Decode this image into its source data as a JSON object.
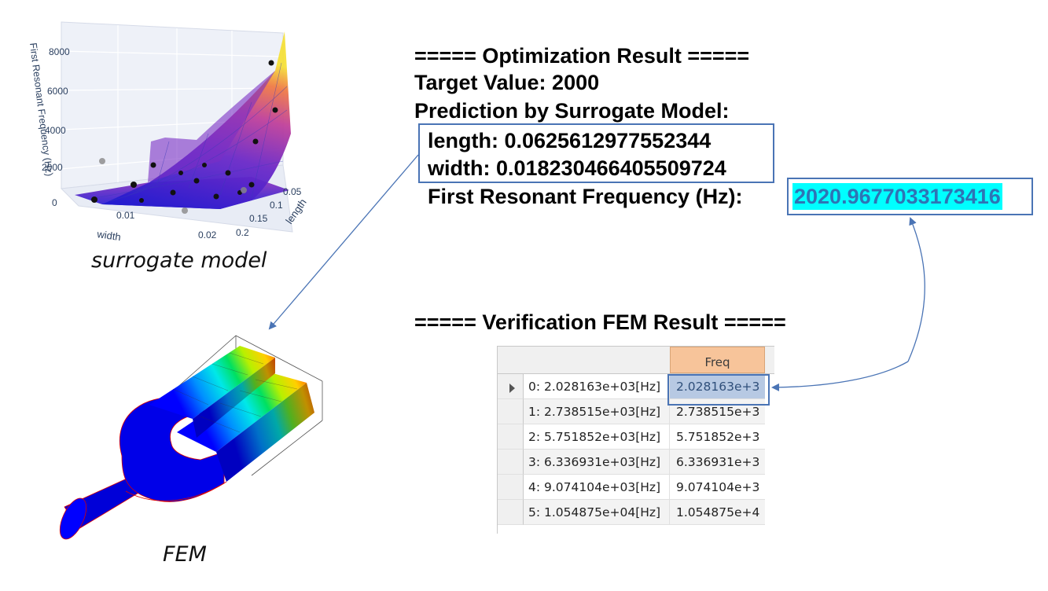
{
  "surrogate": {
    "z_axis_label": "First Resonant Frequency (Hz)",
    "z_ticks": [
      "8000",
      "6000",
      "4000",
      "2000",
      "0"
    ],
    "width_axis_label": "width",
    "width_ticks": [
      "0.01",
      "0.02"
    ],
    "length_axis_label": "length",
    "length_ticks": [
      "0.05",
      "0.1",
      "0.15",
      "0.2"
    ],
    "caption": "surrogate model"
  },
  "fem": {
    "caption": "FEM"
  },
  "optimization": {
    "header": "===== Optimization Result =====",
    "target_line": "Target Value: 2000",
    "prediction_header": "Prediction by Surrogate Model:",
    "length_line": "length: 0.0625612977552344",
    "width_line": "width: 0.018230466405509724",
    "freq_label": "First Resonant Frequency (Hz):",
    "freq_value": "2020.9677033173416"
  },
  "verification": {
    "header": "===== Verification FEM Result =====",
    "column_header": "Freq",
    "rows": [
      {
        "name": "0: 2.028163e+03[Hz]",
        "value": "2.028163e+3"
      },
      {
        "name": "1: 2.738515e+03[Hz]",
        "value": "2.738515e+3"
      },
      {
        "name": "2: 5.751852e+03[Hz]",
        "value": "5.751852e+3"
      },
      {
        "name": "3: 6.336931e+03[Hz]",
        "value": "6.336931e+3"
      },
      {
        "name": "4: 9.074104e+03[Hz]",
        "value": "9.074104e+3"
      },
      {
        "name": "5: 1.054875e+04[Hz]",
        "value": "1.054875e+4"
      }
    ]
  },
  "colors": {
    "accent_box": "#4a74b5",
    "highlight_bg": "#00ffff",
    "highlight_text": "#2e74b5",
    "freq_header_bg": "#f7c49a"
  }
}
